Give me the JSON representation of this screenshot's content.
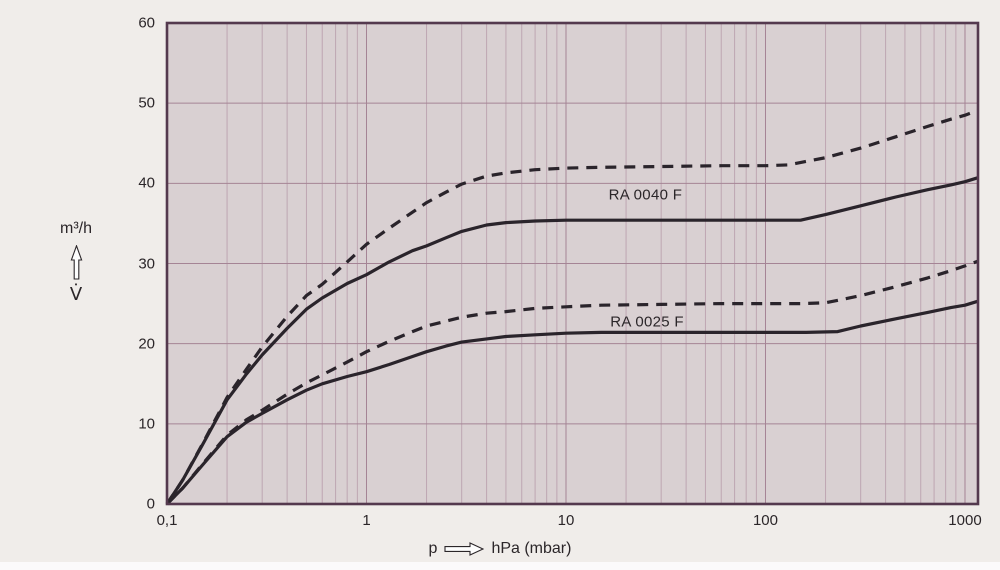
{
  "page": {
    "background": "#f0edea",
    "plot_background": "#d9d0d2",
    "grid_major_color": "#a58495",
    "grid_minor_color": "#bea6b2",
    "border_color": "#54394e",
    "curve_color": "#2a242b",
    "text_color": "#2b2629",
    "arrow_fill": "#fdfdfd"
  },
  "axes": {
    "y_unit_label": "m³/h",
    "y_symbol": "V̇",
    "x_symbol": "p",
    "x_unit_label": "hPa (mbar)",
    "y_ticks": [
      0,
      10,
      20,
      30,
      40,
      50,
      60
    ],
    "x_ticks": [
      {
        "value": 0.1,
        "label": "0,1"
      },
      {
        "value": 1,
        "label": "1"
      },
      {
        "value": 10,
        "label": "10"
      },
      {
        "value": 100,
        "label": "100"
      },
      {
        "value": 1000,
        "label": "1000"
      }
    ],
    "icons": {
      "y_axis": "up-arrow",
      "x_axis": "right-arrow"
    }
  },
  "chart_data": {
    "type": "line",
    "title": "",
    "xlabel": "p, hPa (mbar)",
    "ylabel": "V̇, m³/h",
    "x_scale": "log",
    "x_range": [
      0.1,
      1162
    ],
    "y_range": [
      0,
      60
    ],
    "grid": true,
    "legend_position": "inline-labels",
    "series": [
      {
        "name": "RA 0040 F",
        "style": "dashed",
        "points": [
          [
            0.1,
            0
          ],
          [
            0.12,
            3
          ],
          [
            0.15,
            7.4
          ],
          [
            0.2,
            13.3
          ],
          [
            0.25,
            16.8
          ],
          [
            0.3,
            19.6
          ],
          [
            0.4,
            23.4
          ],
          [
            0.5,
            26
          ],
          [
            0.6,
            27.4
          ],
          [
            0.8,
            30.2
          ],
          [
            1,
            32.4
          ],
          [
            1.3,
            34.4
          ],
          [
            1.7,
            36.4
          ],
          [
            2,
            37.6
          ],
          [
            2.5,
            38.9
          ],
          [
            3,
            39.9
          ],
          [
            4,
            40.9
          ],
          [
            5,
            41.3
          ],
          [
            7,
            41.7
          ],
          [
            10,
            41.9
          ],
          [
            15,
            42
          ],
          [
            30,
            42.1
          ],
          [
            60,
            42.2
          ],
          [
            100,
            42.2
          ],
          [
            130,
            42.3
          ],
          [
            200,
            43.2
          ],
          [
            300,
            44.4
          ],
          [
            450,
            45.8
          ],
          [
            650,
            47.1
          ],
          [
            850,
            48
          ],
          [
            1000,
            48.5
          ],
          [
            1162,
            49.1
          ]
        ]
      },
      {
        "name": "RA 0040 F",
        "style": "solid",
        "points": [
          [
            0.1,
            0
          ],
          [
            0.12,
            3
          ],
          [
            0.15,
            7.3
          ],
          [
            0.2,
            13
          ],
          [
            0.25,
            16.2
          ],
          [
            0.3,
            18.6
          ],
          [
            0.4,
            21.9
          ],
          [
            0.5,
            24.3
          ],
          [
            0.6,
            25.7
          ],
          [
            0.8,
            27.5
          ],
          [
            1,
            28.6
          ],
          [
            1.3,
            30.2
          ],
          [
            1.7,
            31.6
          ],
          [
            2,
            32.2
          ],
          [
            2.5,
            33.2
          ],
          [
            3,
            34
          ],
          [
            4,
            34.8
          ],
          [
            5,
            35.1
          ],
          [
            7,
            35.3
          ],
          [
            10,
            35.4
          ],
          [
            15,
            35.4
          ],
          [
            30,
            35.4
          ],
          [
            60,
            35.4
          ],
          [
            100,
            35.4
          ],
          [
            150,
            35.4
          ],
          [
            200,
            36.1
          ],
          [
            300,
            37.2
          ],
          [
            450,
            38.3
          ],
          [
            650,
            39.2
          ],
          [
            850,
            39.8
          ],
          [
            1000,
            40.2
          ],
          [
            1162,
            40.7
          ]
        ]
      },
      {
        "name": "RA 0025 F",
        "style": "dashed",
        "points": [
          [
            0.1,
            0
          ],
          [
            0.12,
            2
          ],
          [
            0.15,
            4.9
          ],
          [
            0.2,
            8.6
          ],
          [
            0.25,
            10.5
          ],
          [
            0.3,
            11.7
          ],
          [
            0.4,
            13.7
          ],
          [
            0.5,
            15.1
          ],
          [
            0.6,
            16.1
          ],
          [
            0.8,
            17.7
          ],
          [
            1,
            19
          ],
          [
            1.3,
            20.3
          ],
          [
            1.7,
            21.5
          ],
          [
            2,
            22.2
          ],
          [
            2.5,
            22.8
          ],
          [
            3,
            23.3
          ],
          [
            4,
            23.8
          ],
          [
            5,
            24
          ],
          [
            7,
            24.4
          ],
          [
            10,
            24.6
          ],
          [
            15,
            24.8
          ],
          [
            30,
            24.9
          ],
          [
            60,
            25
          ],
          [
            100,
            25
          ],
          [
            150,
            25
          ],
          [
            200,
            25.1
          ],
          [
            300,
            26
          ],
          [
            450,
            27.1
          ],
          [
            650,
            28.2
          ],
          [
            850,
            29.1
          ],
          [
            1000,
            29.7
          ],
          [
            1162,
            30.3
          ]
        ]
      },
      {
        "name": "RA 0025 F",
        "style": "solid",
        "points": [
          [
            0.1,
            0
          ],
          [
            0.12,
            2
          ],
          [
            0.15,
            4.8
          ],
          [
            0.2,
            8.4
          ],
          [
            0.25,
            10.2
          ],
          [
            0.3,
            11.3
          ],
          [
            0.4,
            13
          ],
          [
            0.5,
            14.2
          ],
          [
            0.6,
            15
          ],
          [
            0.8,
            15.9
          ],
          [
            1,
            16.5
          ],
          [
            1.3,
            17.4
          ],
          [
            1.7,
            18.4
          ],
          [
            2,
            19
          ],
          [
            2.5,
            19.7
          ],
          [
            3,
            20.2
          ],
          [
            4,
            20.6
          ],
          [
            5,
            20.9
          ],
          [
            7,
            21.1
          ],
          [
            10,
            21.3
          ],
          [
            15,
            21.4
          ],
          [
            30,
            21.4
          ],
          [
            60,
            21.4
          ],
          [
            100,
            21.4
          ],
          [
            160,
            21.4
          ],
          [
            230,
            21.5
          ],
          [
            300,
            22.2
          ],
          [
            450,
            23.1
          ],
          [
            650,
            23.9
          ],
          [
            850,
            24.5
          ],
          [
            1000,
            24.8
          ],
          [
            1162,
            25.3
          ]
        ]
      }
    ],
    "curve_labels": [
      {
        "text": "RA 0040 F",
        "p": 25,
        "v": 38.6
      },
      {
        "text": "RA 0025 F",
        "p": 25.5,
        "v": 22.7
      }
    ]
  }
}
